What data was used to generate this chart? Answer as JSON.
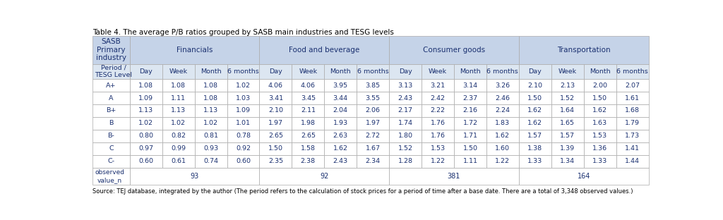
{
  "title": "Table 4. The average P/B ratios grouped by SASB main industries and TESG levels",
  "source_text": "Source: TEJ database, integrated by the author (The period refers to the calculation of stock prices for a period of time after a base date. There are a total of 3,348 observed values.)",
  "col_groups": [
    "Financials",
    "Food and beverage",
    "Consumer goods",
    "Transportation"
  ],
  "sub_cols": [
    "Day",
    "Week",
    "Month",
    "6 months"
  ],
  "row_labels": [
    "A+",
    "A",
    "B+",
    "B",
    "B-",
    "C",
    "C-"
  ],
  "header_row1_label": "SASB\nPrimary\nindustry",
  "header_row2_label": "Period /\nTESG Level",
  "data": [
    [
      1.08,
      1.08,
      1.08,
      1.02,
      4.06,
      4.06,
      3.95,
      3.85,
      3.13,
      3.21,
      3.14,
      3.26,
      2.1,
      2.13,
      2.0,
      2.07
    ],
    [
      1.09,
      1.11,
      1.08,
      1.03,
      3.41,
      3.45,
      3.44,
      3.55,
      2.43,
      2.42,
      2.37,
      2.46,
      1.5,
      1.52,
      1.5,
      1.61
    ],
    [
      1.13,
      1.13,
      1.13,
      1.09,
      2.1,
      2.11,
      2.04,
      2.06,
      2.17,
      2.22,
      2.16,
      2.24,
      1.62,
      1.64,
      1.62,
      1.68
    ],
    [
      1.02,
      1.02,
      1.02,
      1.01,
      1.97,
      1.98,
      1.93,
      1.97,
      1.74,
      1.76,
      1.72,
      1.83,
      1.62,
      1.65,
      1.63,
      1.79
    ],
    [
      0.8,
      0.82,
      0.81,
      0.78,
      2.65,
      2.65,
      2.63,
      2.72,
      1.8,
      1.76,
      1.71,
      1.62,
      1.57,
      1.57,
      1.53,
      1.73
    ],
    [
      0.97,
      0.99,
      0.93,
      0.92,
      1.5,
      1.58,
      1.62,
      1.67,
      1.52,
      1.53,
      1.5,
      1.6,
      1.38,
      1.39,
      1.36,
      1.41
    ],
    [
      0.6,
      0.61,
      0.74,
      0.6,
      2.35,
      2.38,
      2.43,
      2.34,
      1.28,
      1.22,
      1.11,
      1.22,
      1.33,
      1.34,
      1.33,
      1.44
    ]
  ],
  "observed_n": [
    "93",
    "92",
    "381",
    "164"
  ],
  "header_bg": "#c5d3e8",
  "subheader_bg": "#dce6f1",
  "row_bg_white": "#ffffff",
  "border_color": "#aaaaaa",
  "text_color": "#1a3070",
  "title_color": "#000000",
  "source_color": "#000000",
  "title_fontsize": 7.5,
  "header_fontsize": 7.0,
  "data_fontsize": 6.8,
  "source_fontsize": 6.0
}
